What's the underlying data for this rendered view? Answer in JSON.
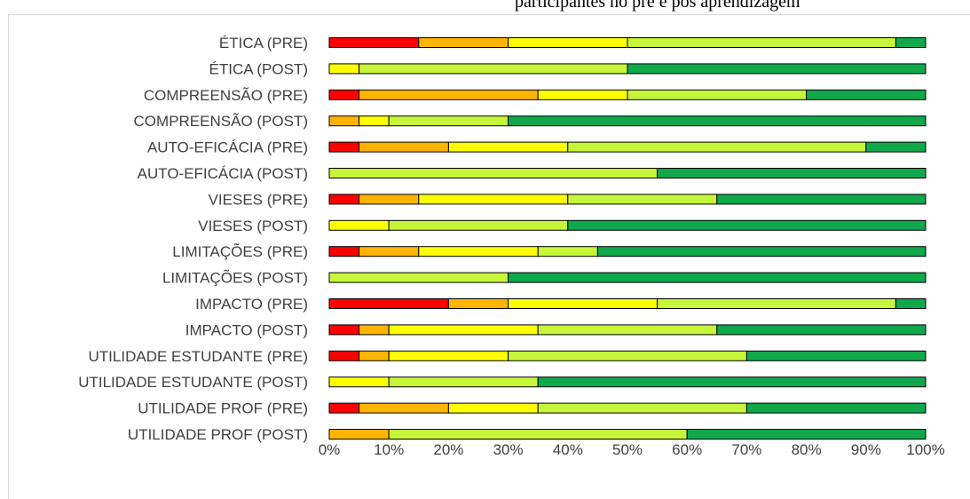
{
  "caption_fragment": "participantes no pré e pós aprendizagem",
  "chart_data": {
    "type": "bar",
    "orientation": "horizontal",
    "stacked": "percent",
    "categories": [
      "ÉTICA (PRE)",
      "ÉTICA (POST)",
      "COMPREENSÃO (PRE)",
      "COMPREENSÃO (POST)",
      "AUTO-EFICÁCIA (PRE)",
      "AUTO-EFICÁCIA (POST)",
      "VIESES (PRE)",
      "VIESES (POST)",
      "LIMITAÇÕES (PRE)",
      "LIMITAÇÕES (POST)",
      "IMPACTO (PRE)",
      "IMPACTO (POST)",
      "UTILIDADE ESTUDANTE (PRE)",
      "UTILIDADE ESTUDANTE (POST)",
      "UTILIDADE PROF (PRE)",
      "UTILIDADE PROF (POST)"
    ],
    "series": [
      {
        "color": "#ff0000",
        "values": [
          15,
          0,
          5,
          0,
          5,
          0,
          5,
          0,
          5,
          0,
          20,
          5,
          5,
          0,
          5,
          0
        ]
      },
      {
        "color": "#ffb400",
        "values": [
          15,
          0,
          30,
          5,
          15,
          0,
          10,
          0,
          10,
          0,
          10,
          5,
          5,
          0,
          15,
          10
        ]
      },
      {
        "color": "#ffff00",
        "values": [
          20,
          5,
          15,
          5,
          20,
          0,
          25,
          10,
          20,
          0,
          25,
          25,
          20,
          10,
          15,
          0
        ]
      },
      {
        "color": "#c6f53a",
        "values": [
          45,
          45,
          30,
          20,
          50,
          55,
          25,
          30,
          10,
          30,
          40,
          30,
          40,
          25,
          35,
          50
        ]
      },
      {
        "color": "#0fa84a",
        "values": [
          5,
          50,
          20,
          70,
          10,
          45,
          35,
          60,
          55,
          70,
          5,
          35,
          30,
          65,
          30,
          40
        ]
      }
    ],
    "x_ticks": [
      "0%",
      "10%",
      "20%",
      "30%",
      "40%",
      "50%",
      "60%",
      "70%",
      "80%",
      "90%",
      "100%"
    ],
    "xlim": [
      0,
      100
    ],
    "grid": false,
    "legend": "none"
  }
}
